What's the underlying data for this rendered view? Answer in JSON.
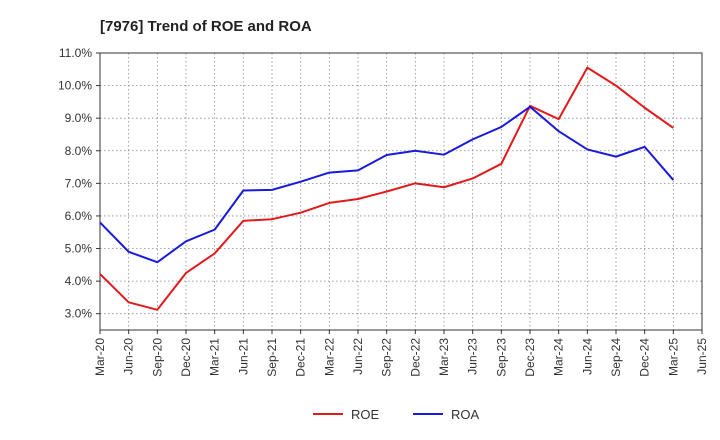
{
  "chart_data": {
    "type": "line",
    "title": "[7976]  Trend of ROE and ROA",
    "xlabel": "",
    "ylabel": "",
    "categories": [
      "Mar-20",
      "Jun-20",
      "Sep-20",
      "Dec-20",
      "Mar-21",
      "Jun-21",
      "Sep-21",
      "Dec-21",
      "Mar-22",
      "Jun-22",
      "Sep-22",
      "Dec-22",
      "Mar-23",
      "Jun-23",
      "Sep-23",
      "Dec-23",
      "Mar-24",
      "Jun-24",
      "Sep-24",
      "Dec-24",
      "Mar-25",
      "Jun-25"
    ],
    "y_ticks": [
      "3.0%",
      "4.0%",
      "5.0%",
      "6.0%",
      "7.0%",
      "8.0%",
      "9.0%",
      "10.0%",
      "11.0%"
    ],
    "ylim": [
      2.5,
      11.0
    ],
    "grid": true,
    "legend_position": "bottom",
    "series": [
      {
        "name": "ROE",
        "color": "#e31a1c",
        "values": [
          4.22,
          3.35,
          3.12,
          4.25,
          4.85,
          5.85,
          5.9,
          6.1,
          6.4,
          6.52,
          6.75,
          7.0,
          6.88,
          7.15,
          7.6,
          9.38,
          8.97,
          10.55,
          10.0,
          9.32,
          8.7,
          null
        ]
      },
      {
        "name": "ROA",
        "color": "#1a1adc",
        "values": [
          5.8,
          4.9,
          4.58,
          5.22,
          5.58,
          6.78,
          6.8,
          7.05,
          7.33,
          7.4,
          7.87,
          8.0,
          7.88,
          8.35,
          8.73,
          9.35,
          8.6,
          8.04,
          7.82,
          8.12,
          7.1,
          null
        ]
      }
    ]
  }
}
